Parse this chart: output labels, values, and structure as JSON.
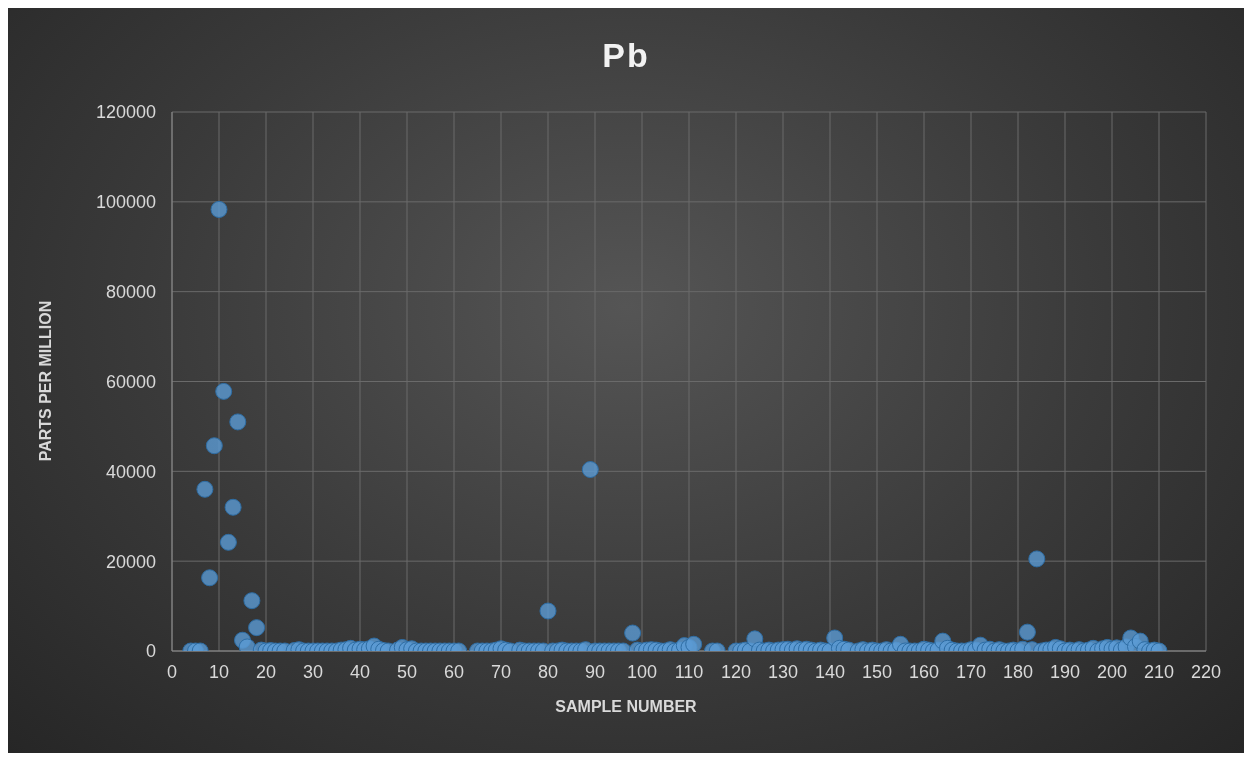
{
  "chart_data": {
    "type": "scatter",
    "title": "Pb",
    "xlabel": "SAMPLE NUMBER",
    "ylabel": "PARTS PER MILLION",
    "x": [
      4,
      5,
      6,
      7,
      8,
      9,
      10,
      11,
      12,
      13,
      14,
      15,
      16,
      17,
      18,
      19,
      20,
      21,
      22,
      23,
      24,
      26,
      27,
      28,
      29,
      30,
      31,
      32,
      33,
      34,
      35,
      36,
      37,
      38,
      39,
      40,
      41,
      42,
      43,
      44,
      45,
      46,
      48,
      49,
      50,
      51,
      52,
      53,
      54,
      55,
      56,
      57,
      58,
      59,
      60,
      61,
      65,
      66,
      67,
      68,
      69,
      70,
      71,
      72,
      74,
      75,
      76,
      77,
      78,
      79,
      80,
      81,
      82,
      83,
      84,
      85,
      86,
      87,
      88,
      89,
      90,
      91,
      92,
      93,
      94,
      95,
      96,
      98,
      99,
      100,
      101,
      102,
      103,
      104,
      105,
      106,
      107,
      108,
      109,
      110,
      111,
      115,
      116,
      120,
      121,
      122,
      123,
      124,
      125,
      126,
      127,
      128,
      129,
      130,
      131,
      132,
      133,
      134,
      135,
      136,
      137,
      138,
      139,
      140,
      141,
      142,
      143,
      144,
      146,
      147,
      148,
      149,
      150,
      151,
      152,
      153,
      154,
      155,
      156,
      157,
      158,
      159,
      160,
      161,
      162,
      163,
      164,
      165,
      166,
      167,
      168,
      169,
      170,
      171,
      172,
      173,
      174,
      175,
      176,
      177,
      178,
      179,
      180,
      181,
      182,
      183,
      184,
      185,
      186,
      187,
      188,
      189,
      190,
      191,
      192,
      193,
      194,
      195,
      196,
      197,
      198,
      199,
      200,
      201,
      202,
      203,
      204,
      205,
      206,
      207,
      208,
      209,
      210
    ],
    "series": [
      {
        "color": "#5b9bd5",
        "values": [
          0,
          0,
          0,
          36000,
          16300,
          45700,
          98300,
          57800,
          24200,
          32000,
          51000,
          2400,
          900,
          11200,
          5200,
          200,
          0,
          100,
          0,
          0,
          0,
          100,
          300,
          0,
          0,
          0,
          0,
          0,
          0,
          0,
          0,
          200,
          300,
          600,
          200,
          400,
          300,
          500,
          1100,
          400,
          100,
          0,
          200,
          800,
          300,
          500,
          0,
          0,
          0,
          0,
          0,
          0,
          0,
          0,
          0,
          0,
          0,
          0,
          0,
          0,
          200,
          500,
          200,
          0,
          200,
          0,
          0,
          0,
          0,
          0,
          8900,
          0,
          0,
          200,
          0,
          0,
          0,
          0,
          300,
          40400,
          0,
          0,
          0,
          0,
          0,
          0,
          0,
          4000,
          200,
          0,
          200,
          300,
          200,
          0,
          0,
          300,
          0,
          200,
          1200,
          800,
          1500,
          0,
          0,
          0,
          0,
          200,
          0,
          2700,
          200,
          0,
          200,
          0,
          200,
          300,
          400,
          200,
          500,
          200,
          400,
          200,
          0,
          200,
          0,
          0,
          2900,
          600,
          400,
          200,
          0,
          300,
          0,
          200,
          0,
          0,
          300,
          0,
          200,
          1500,
          0,
          0,
          0,
          0,
          400,
          200,
          0,
          200,
          2200,
          600,
          200,
          0,
          0,
          0,
          300,
          200,
          1300,
          200,
          400,
          0,
          300,
          0,
          0,
          200,
          0,
          400,
          4200,
          300,
          20500,
          0,
          200,
          300,
          800,
          500,
          0,
          200,
          0,
          300,
          0,
          200,
          600,
          0,
          500,
          800,
          400,
          700,
          200,
          900,
          2900,
          1000,
          2200,
          300,
          0,
          200,
          0
        ]
      }
    ],
    "xlim": [
      0,
      220
    ],
    "xticks": [
      0,
      10,
      20,
      30,
      40,
      50,
      60,
      70,
      80,
      90,
      100,
      110,
      120,
      130,
      140,
      150,
      160,
      170,
      180,
      190,
      200,
      210,
      220
    ],
    "ylim": [
      0,
      120000
    ],
    "yticks": [
      0,
      20000,
      40000,
      60000,
      80000,
      100000,
      120000
    ],
    "grid": true,
    "marker": "circle",
    "legend": false
  }
}
